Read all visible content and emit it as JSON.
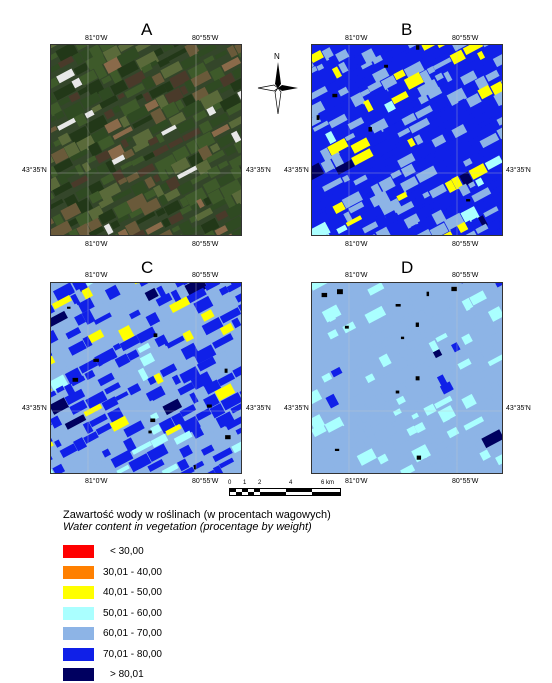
{
  "panels": [
    {
      "letter": "A",
      "type": "rgb"
    },
    {
      "letter": "B",
      "type": "classB"
    },
    {
      "letter": "C",
      "type": "classC"
    },
    {
      "letter": "D",
      "type": "classD"
    }
  ],
  "coords": {
    "lon_left": "81°0'W",
    "lon_right": "80°55'W",
    "lat": "43°35'N"
  },
  "north_label": "N",
  "scale": {
    "labels": [
      "0",
      "1",
      "2",
      "4",
      "6 km"
    ]
  },
  "legend": {
    "title": "Zawartość wody w roślinach (w procentach wagowych)",
    "subtitle": "Water content in vegetation (procentage by weight)",
    "classes": [
      {
        "label": "< 30,00",
        "color": "#ff0000"
      },
      {
        "label": "30,01 - 40,00",
        "color": "#ff8000"
      },
      {
        "label": "40,01 - 50,00",
        "color": "#ffff00"
      },
      {
        "label": "50,01 - 60,00",
        "color": "#aaffff"
      },
      {
        "label": "60,01 - 70,00",
        "color": "#8db4e6"
      },
      {
        "label": "70,01 - 80,00",
        "color": "#1020e8"
      },
      {
        "label": "> 80,01",
        "color": "#000060"
      }
    ]
  }
}
